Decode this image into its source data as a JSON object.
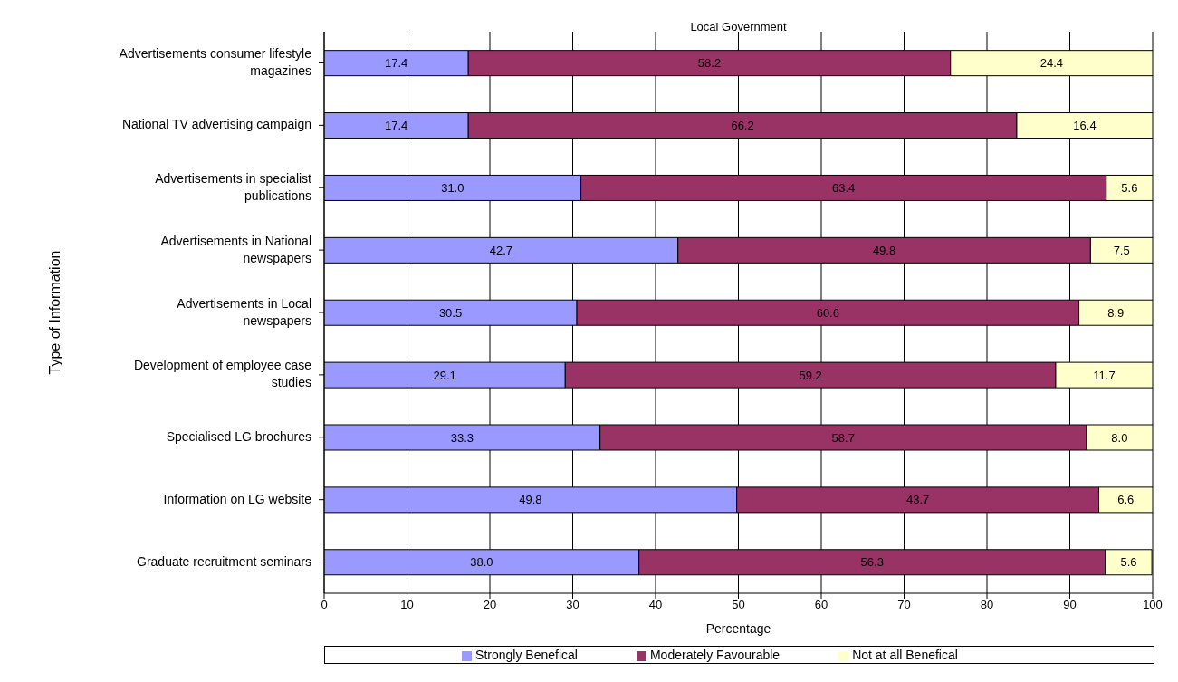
{
  "chart_data": {
    "type": "bar",
    "orientation": "horizontal",
    "stacked": true,
    "title": "Local Government",
    "xlabel": "Percentage",
    "ylabel": "Type of Information",
    "categories": [
      "Advertisements consumer lifestyle magazines",
      "National TV advertising campaign",
      "Advertisements in specialist publications",
      "Advertisements in National newspapers",
      "Advertisements in Local newspapers",
      "Development of employee case studies",
      "Specialised LG brochures",
      "Information on LG website",
      "Graduate recruitment seminars"
    ],
    "series": [
      {
        "name": "Strongly Benefical",
        "color": "#9999ff",
        "values": [
          17.4,
          17.4,
          31.0,
          42.7,
          30.5,
          29.1,
          33.3,
          49.8,
          38.0
        ],
        "value_labels": [
          "17.4",
          "17.4",
          "31.0",
          "42.7",
          "30.5",
          "29.1",
          "33.3",
          "49.8",
          "38.0"
        ]
      },
      {
        "name": "Moderately Favourable",
        "color": "#993366",
        "values": [
          58.2,
          66.2,
          63.4,
          49.8,
          60.6,
          59.2,
          58.7,
          43.7,
          56.3
        ],
        "value_labels": [
          "58.2",
          "66.2",
          "63.4",
          "49.8",
          "60.6",
          "59.2",
          "58.7",
          "43.7",
          "56.3"
        ]
      },
      {
        "name": "Not at all Benefical",
        "color": "#ffffcc",
        "values": [
          24.4,
          16.4,
          5.6,
          7.5,
          8.9,
          11.7,
          8.0,
          6.6,
          5.6
        ],
        "value_labels": [
          "24.4",
          "16.4",
          "5.6",
          "7.5",
          "8.9",
          "11.7",
          "8.0",
          "6.6",
          "5.6"
        ]
      }
    ],
    "xlim": [
      0,
      100
    ],
    "xticks": [
      0,
      10,
      20,
      30,
      40,
      50,
      60,
      70,
      80,
      90,
      100
    ],
    "grid": "x",
    "legend": "bottom"
  }
}
